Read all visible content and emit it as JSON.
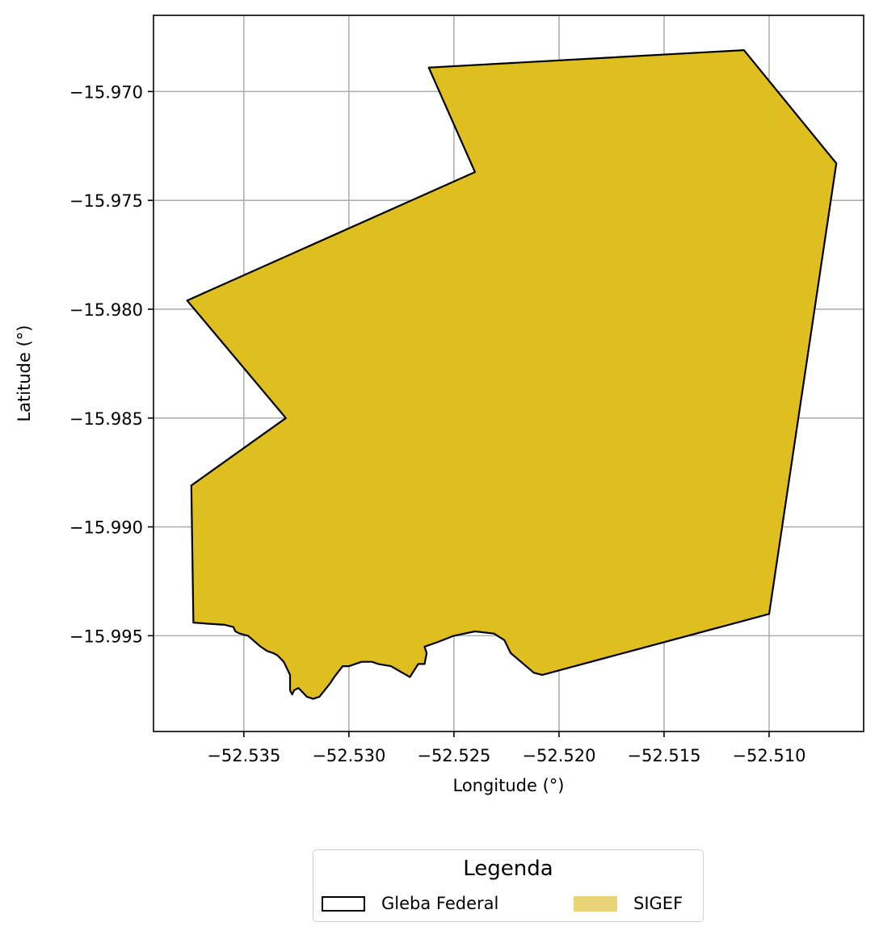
{
  "map": {
    "xlabel": "Longitude (°)",
    "ylabel": "Latitude (°)",
    "xlim": [
      -52.5393,
      -52.5055
    ],
    "ylim": [
      -15.9994,
      -15.9665
    ],
    "xticks": [
      -52.535,
      -52.53,
      -52.525,
      -52.52,
      -52.515,
      -52.51
    ],
    "xtick_labels": [
      "−52.535",
      "−52.530",
      "−52.525",
      "−52.520",
      "−52.515",
      "−52.510"
    ],
    "yticks": [
      -15.97,
      -15.975,
      -15.98,
      -15.985,
      -15.99,
      -15.995
    ],
    "ytick_labels": [
      "−15.970",
      "−15.975",
      "−15.980",
      "−15.985",
      "−15.990",
      "−15.995"
    ],
    "grid": true,
    "polygon": {
      "name": "SIGEF",
      "fill_color": "#dfbe20",
      "edge_color": "#000000",
      "coordinates": [
        [
          -52.5262,
          -15.9689
        ],
        [
          -52.5112,
          -15.9681
        ],
        [
          -52.5068,
          -15.9733
        ],
        [
          -52.51,
          -15.994
        ],
        [
          -52.5208,
          -15.9968
        ],
        [
          -52.5212,
          -15.9967
        ],
        [
          -52.5223,
          -15.9958
        ],
        [
          -52.5226,
          -15.9952
        ],
        [
          -52.5231,
          -15.9949
        ],
        [
          -52.524,
          -15.9948
        ],
        [
          -52.525,
          -15.995
        ],
        [
          -52.5258,
          -15.9953
        ],
        [
          -52.5264,
          -15.9955
        ],
        [
          -52.5263,
          -15.9958
        ],
        [
          -52.5264,
          -15.9963
        ],
        [
          -52.5267,
          -15.9963
        ],
        [
          -52.5271,
          -15.9969
        ],
        [
          -52.528,
          -15.9964
        ],
        [
          -52.5286,
          -15.9963
        ],
        [
          -52.5289,
          -15.9962
        ],
        [
          -52.5291,
          -15.9962
        ],
        [
          -52.5294,
          -15.9962
        ],
        [
          -52.53,
          -15.9964
        ],
        [
          -52.5303,
          -15.9964
        ],
        [
          -52.5307,
          -15.9969
        ],
        [
          -52.5309,
          -15.9972
        ],
        [
          -52.5314,
          -15.9978
        ],
        [
          -52.5317,
          -15.9979
        ],
        [
          -52.532,
          -15.9978
        ],
        [
          -52.5324,
          -15.9974
        ],
        [
          -52.5326,
          -15.9975
        ],
        [
          -52.5327,
          -15.9977
        ],
        [
          -52.5328,
          -15.9975
        ],
        [
          -52.5328,
          -15.9968
        ],
        [
          -52.5331,
          -15.9962
        ],
        [
          -52.5334,
          -15.9959
        ],
        [
          -52.5336,
          -15.9958
        ],
        [
          -52.5339,
          -15.9957
        ],
        [
          -52.5342,
          -15.9955
        ],
        [
          -52.5348,
          -15.995
        ],
        [
          -52.5352,
          -15.9949
        ],
        [
          -52.5354,
          -15.9948
        ],
        [
          -52.5355,
          -15.9946
        ],
        [
          -52.5359,
          -15.9945
        ],
        [
          -52.5374,
          -15.9944
        ],
        [
          -52.5375,
          -15.9881
        ],
        [
          -52.533,
          -15.985
        ],
        [
          -52.5377,
          -15.9796
        ],
        [
          -52.524,
          -15.9737
        ]
      ]
    }
  },
  "legend": {
    "title": "Legenda",
    "entries": [
      {
        "label": "Gleba Federal",
        "style": "outline",
        "edge_color": "#000000"
      },
      {
        "label": "SIGEF",
        "style": "filled",
        "fill_color": "#e8d378"
      }
    ]
  }
}
